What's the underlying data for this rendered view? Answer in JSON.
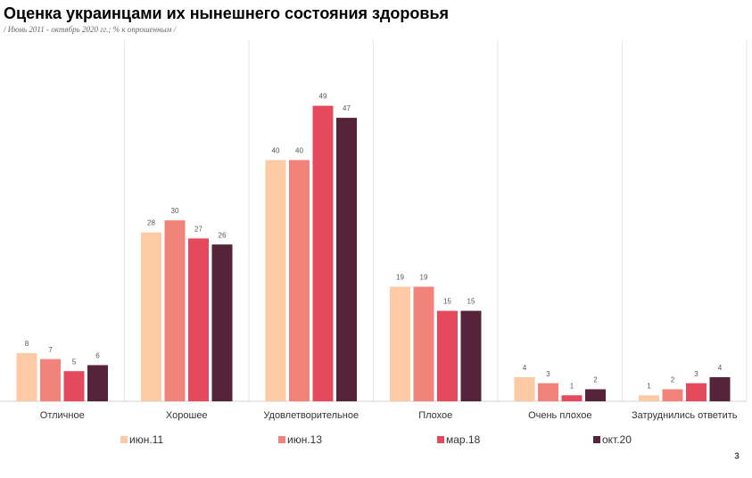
{
  "chart_data": {
    "type": "bar",
    "title": "Оценка украинцами их нынешнего состояния здоровья",
    "subtitle": "/ Июнь 2011 - октябрь 2020 гг.; % к опрошенным  /",
    "categories": [
      "Отличное",
      "Хорошее",
      "Удовлетворительное",
      "Плохое",
      "Очень плохое",
      "Затруднились ответить"
    ],
    "series": [
      {
        "name": "июн.11",
        "color": "#fccba5",
        "values": [
          8,
          28,
          40,
          19,
          4,
          1
        ]
      },
      {
        "name": "июн.13",
        "color": "#f2837b",
        "values": [
          7,
          30,
          40,
          19,
          3,
          2
        ]
      },
      {
        "name": "мар.18",
        "color": "#e54a5c",
        "values": [
          5,
          27,
          49,
          15,
          1,
          3
        ]
      },
      {
        "name": "окт.20",
        "color": "#55243a",
        "values": [
          6,
          26,
          47,
          15,
          2,
          4
        ]
      }
    ],
    "ylim": [
      0,
      55
    ],
    "legend": "bottom"
  },
  "page_number": "3"
}
